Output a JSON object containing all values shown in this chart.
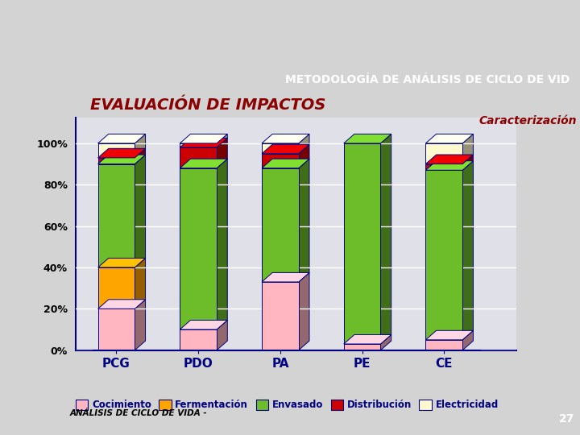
{
  "categories": [
    "PCG",
    "PDO",
    "PA",
    "PE",
    "CE"
  ],
  "series": {
    "Cocimiento": [
      20,
      10,
      33,
      3,
      5
    ],
    "Fermentación": [
      20,
      0,
      0,
      0,
      0
    ],
    "Envasado": [
      50,
      78,
      55,
      97,
      82
    ],
    "Distribución": [
      3,
      10,
      7,
      0,
      3
    ],
    "Electricidad": [
      7,
      2,
      5,
      0,
      10
    ]
  },
  "colors": {
    "Cocimiento": "#FFB6C1",
    "Fermentación": "#FFA500",
    "Envasado": "#6DBD2A",
    "Distribución": "#CC0000",
    "Electricidad": "#FFFACD"
  },
  "title_top": "METODOLOGÍA DE ANÁLISIS DE CICLO DE VID",
  "subtitle": "EVALUACIÓN DE IMPACTOS",
  "label_right": "Caracterización",
  "bg_top_color": "#8FBC8F",
  "bg_main_color": "#D3D3D3",
  "title_bg": "#787878",
  "plot_bg": "#E0E0E8",
  "yticks": [
    0,
    20,
    40,
    60,
    80,
    100
  ],
  "ytick_labels": [
    "0%",
    "20%",
    "40%",
    "60%",
    "80%",
    "100%"
  ]
}
